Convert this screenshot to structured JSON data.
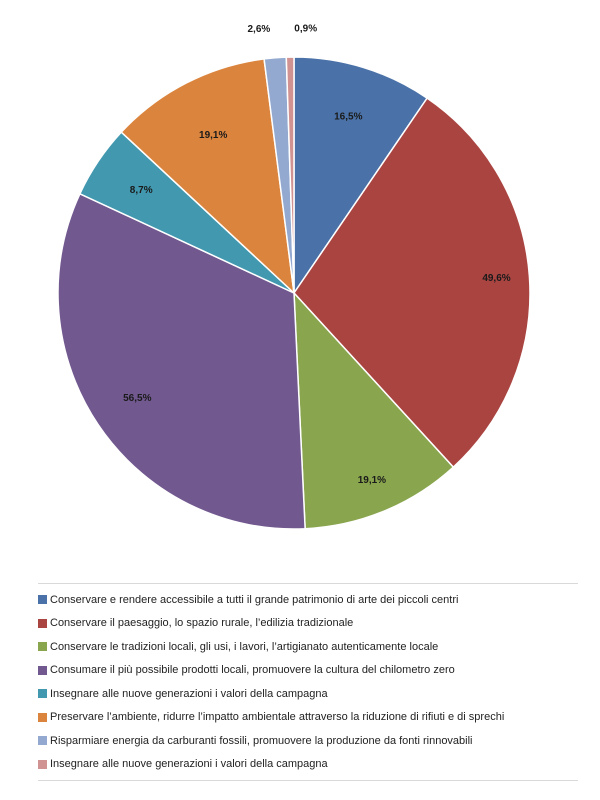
{
  "chart_data": {
    "type": "pie",
    "title": "",
    "slices": [
      {
        "label": "Conservare e rendere accessibile a tutti il grande patrimonio di arte dei piccoli centri",
        "value": 16.5,
        "display": "16,5%",
        "color": "#4a72a8"
      },
      {
        "label": "Conservare il paesaggio, lo spazio rurale, l’edilizia tradizionale",
        "value": 49.6,
        "display": "49,6%",
        "color": "#aa4441"
      },
      {
        "label": "Conservare le tradizioni locali, gli usi, i lavori, l’artigianato autenticamente locale",
        "value": 19.1,
        "display": "19,1%",
        "color": "#89a54e"
      },
      {
        "label": "Consumare il più possibile prodotti locali, promuovere la cultura del chilometro zero",
        "value": 56.5,
        "display": "56,5%",
        "color": "#71588f"
      },
      {
        "label": "Insegnare alle nuove generazioni i valori della campagna",
        "value": 8.7,
        "display": "8,7%",
        "color": "#4198af"
      },
      {
        "label": "Preservare l’ambiente, ridurre l’impatto ambientale attraverso la riduzione di rifiuti e di sprechi",
        "value": 19.1,
        "display": "19,1%",
        "color": "#db843d"
      },
      {
        "label": "Risparmiare energia da carburanti fossili, promuovere la produzione da fonti rinnovabili",
        "value": 2.6,
        "display": "2,6%",
        "color": "#93a9cf"
      },
      {
        "label": "Insegnare alle nuove generazioni i valori della campagna",
        "value": 0.9,
        "display": "0,9%",
        "color": "#d19392"
      }
    ],
    "legend_position": "bottom"
  }
}
